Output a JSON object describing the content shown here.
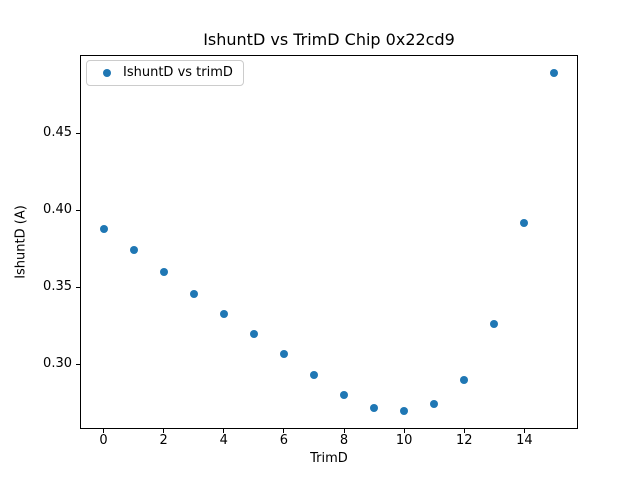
{
  "chart_data": {
    "type": "scatter",
    "title": "IshuntD vs TrimD Chip 0x22cd9",
    "xlabel": "TrimD",
    "ylabel": "IshuntD (A)",
    "legend": {
      "label": "IshuntD vs trimD",
      "position": "upper left"
    },
    "marker_color": "#1f77b4",
    "marker_diameter_px": 8,
    "x": [
      0,
      1,
      2,
      3,
      4,
      5,
      6,
      7,
      8,
      9,
      10,
      11,
      12,
      13,
      14,
      15
    ],
    "y": [
      0.388,
      0.374,
      0.36,
      0.346,
      0.333,
      0.32,
      0.307,
      0.293,
      0.28,
      0.272,
      0.27,
      0.274,
      0.29,
      0.326,
      0.392,
      0.489
    ],
    "xlim": [
      -0.75,
      15.75
    ],
    "ylim": [
      0.2587,
      0.5003
    ],
    "xticks": [
      0,
      2,
      4,
      6,
      8,
      10,
      12,
      14
    ],
    "xtick_labels": [
      "0",
      "2",
      "4",
      "6",
      "8",
      "10",
      "12",
      "14"
    ],
    "yticks": [
      0.3,
      0.35,
      0.4,
      0.45
    ],
    "ytick_labels": [
      "0.30",
      "0.35",
      "0.40",
      "0.45"
    ],
    "grid": false,
    "background": "#ffffff",
    "spine_color": "#000000",
    "text_color": "#000000"
  }
}
